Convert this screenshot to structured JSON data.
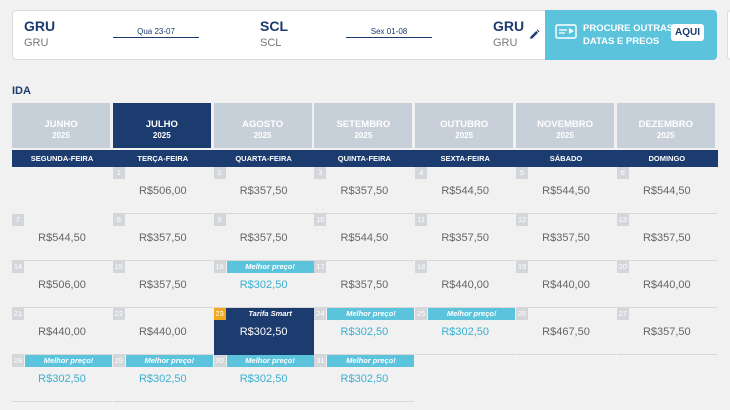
{
  "route": {
    "origin": {
      "code": "GRU",
      "name": "GRU"
    },
    "outbound_date": "Qua 23-07",
    "destination": {
      "code": "SCL",
      "name": "SCL"
    },
    "return_date": "Sex 01-08",
    "return_to": {
      "code": "GRU",
      "name": "GRU"
    },
    "edit_icon": "pencil-icon"
  },
  "promo": {
    "text": "PROCURE OUTRAS DATAS E PREOS",
    "button": "AQUI",
    "icon": "ticket-icon"
  },
  "section_title": "IDA",
  "months": [
    {
      "name": "JUNHO",
      "year": "2025",
      "active": false
    },
    {
      "name": "JULHO",
      "year": "2025",
      "active": true
    },
    {
      "name": "AGOSTO",
      "year": "2025",
      "active": false
    },
    {
      "name": "SETEMBRO",
      "year": "2025",
      "active": false
    },
    {
      "name": "OUTUBRO",
      "year": "2025",
      "active": false
    },
    {
      "name": "NOVEMBRO",
      "year": "2025",
      "active": false
    },
    {
      "name": "DEZEMBRO",
      "year": "2025",
      "active": false
    }
  ],
  "weekdays": [
    "SEGUNDA-FEIRA",
    "TERÇA-FEIRA",
    "QUARTA-FEIRA",
    "QUINTA-FEIRA",
    "SEXTA-FEIRA",
    "SÁBADO",
    "DOMINGO"
  ],
  "days": [
    {
      "day": "1",
      "price": "R$506,00"
    },
    {
      "day": "2",
      "price": "R$357,50"
    },
    {
      "day": "3",
      "price": "R$357,50"
    },
    {
      "day": "4",
      "price": "R$544,50"
    },
    {
      "day": "5",
      "price": "R$544,50"
    },
    {
      "day": "6",
      "price": "R$544,50"
    },
    {
      "day": "7",
      "price": "R$544,50"
    },
    {
      "day": "8",
      "price": "R$357,50"
    },
    {
      "day": "9",
      "price": "R$357,50"
    },
    {
      "day": "10",
      "price": "R$544,50"
    },
    {
      "day": "11",
      "price": "R$357,50"
    },
    {
      "day": "12",
      "price": "R$357,50"
    },
    {
      "day": "13",
      "price": "R$357,50"
    },
    {
      "day": "14",
      "price": "R$506,00"
    },
    {
      "day": "15",
      "price": "R$357,50"
    },
    {
      "day": "16",
      "price": "R$302,50",
      "tag": "Melhor preço!"
    },
    {
      "day": "17",
      "price": "R$357,50"
    },
    {
      "day": "18",
      "price": "R$440,00"
    },
    {
      "day": "19",
      "price": "R$440,00"
    },
    {
      "day": "20",
      "price": "R$440,00"
    },
    {
      "day": "21",
      "price": "R$440,00"
    },
    {
      "day": "22",
      "price": "R$440,00"
    },
    {
      "day": "23",
      "price": "R$302,50",
      "tag": "Tarifa Smart",
      "selected": true
    },
    {
      "day": "24",
      "price": "R$302,50",
      "tag": "Melhor preço!"
    },
    {
      "day": "25",
      "price": "R$302,50",
      "tag": "Melhor preço!"
    },
    {
      "day": "26",
      "price": "R$467,50"
    },
    {
      "day": "27",
      "price": "R$357,50"
    },
    {
      "day": "28",
      "price": "R$302,50",
      "tag": "Melhor preço!"
    },
    {
      "day": "29",
      "price": "R$302,50",
      "tag": "Melhor preço!"
    },
    {
      "day": "30",
      "price": "R$302,50",
      "tag": "Melhor preço!"
    },
    {
      "day": "31",
      "price": "R$302,50",
      "tag": "Melhor preço!"
    }
  ],
  "first_weekday_index": 1,
  "colors": {
    "navy": "#1c3b6e",
    "accent": "#5bc4dc",
    "highlight": "#f2a81d"
  }
}
